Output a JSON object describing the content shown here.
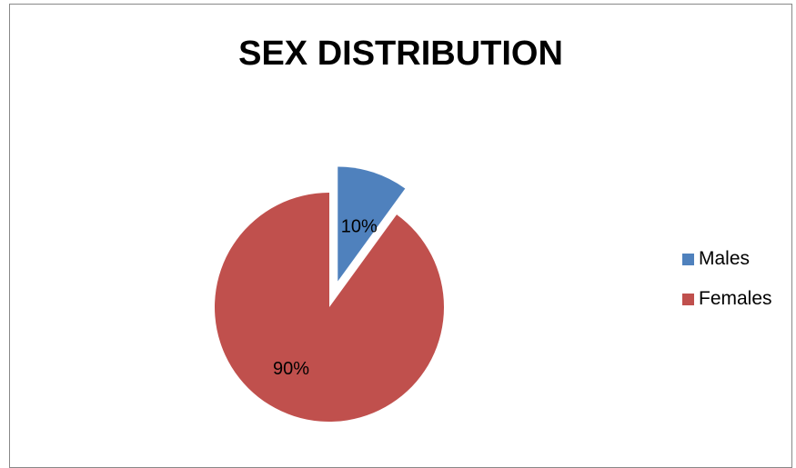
{
  "chart_data": {
    "type": "pie",
    "title": "SEX DISTRIBUTION",
    "categories": [
      "Males",
      "Females"
    ],
    "values": [
      10,
      90
    ],
    "data_labels": [
      "10%",
      "90%"
    ],
    "colors": [
      "#4F81BD",
      "#C0504D"
    ],
    "exploded": "Males",
    "legend_placement": "right"
  }
}
